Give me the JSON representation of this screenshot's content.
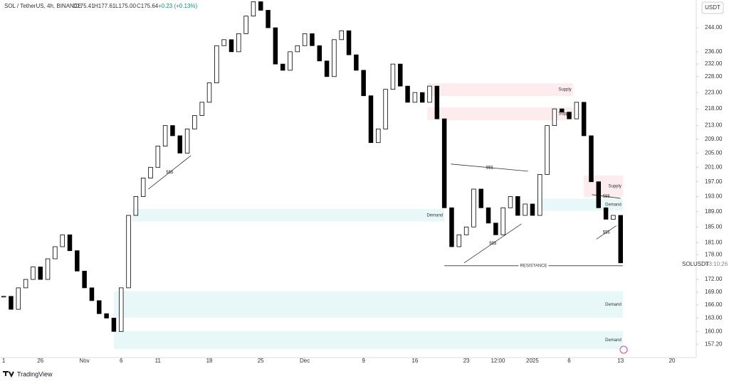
{
  "chart_data": {
    "type": "candle",
    "title": "SOL / TetherUS, 4h, BINANCE",
    "ohlc": [
      "O175.41",
      "H177.61",
      "L175.00",
      "C175.64",
      "+0.23 (+0.13%)"
    ],
    "currency_button": "USDT",
    "symbol_label": "SOLUSDT",
    "countdown": "03:10:26",
    "brand": "TradingView",
    "log_scale": true,
    "color": "#000000",
    "x": [
      0,
      1,
      2,
      3,
      4,
      5,
      6,
      7,
      8,
      9,
      10,
      11,
      12,
      13,
      14,
      15,
      16,
      17,
      18,
      19,
      20,
      21,
      22,
      23,
      24,
      25,
      26,
      27,
      28,
      29,
      30,
      31,
      32,
      33,
      34,
      35,
      36,
      37,
      38,
      39,
      40,
      41,
      42,
      43,
      44,
      45,
      46,
      47,
      48,
      49,
      50,
      51,
      52,
      53,
      54,
      55,
      56,
      57,
      58,
      59,
      60,
      61,
      62,
      63,
      64,
      65,
      66,
      67,
      68,
      69,
      70,
      71,
      72,
      73,
      74,
      75,
      76,
      77,
      78,
      79,
      80,
      81,
      82,
      83,
      84
    ],
    "values": [
      168,
      165,
      170,
      172,
      175,
      172,
      177,
      180,
      183,
      179,
      174,
      170,
      167,
      164,
      163,
      160,
      170,
      188,
      193,
      198,
      201,
      207,
      213,
      210,
      205,
      212,
      216,
      220,
      226,
      238,
      240,
      236,
      242,
      248,
      253,
      250,
      244,
      232,
      230,
      236,
      238,
      242,
      238,
      233,
      228,
      240,
      243,
      235,
      230,
      222,
      208,
      212,
      224,
      232,
      225,
      220,
      223,
      220,
      225,
      215,
      190,
      180,
      183,
      185,
      195,
      190,
      186,
      183,
      190,
      193,
      188,
      191,
      188,
      199,
      213,
      218,
      217,
      215,
      220,
      210,
      197,
      190,
      187,
      188,
      176
    ],
    "xlim": [
      -0.5,
      94.3
    ],
    "xticks": [
      {
        "value": 0,
        "label": "1"
      },
      {
        "value": 5,
        "label": "26"
      },
      {
        "value": 11,
        "label": "Nov"
      },
      {
        "value": 16,
        "label": "6"
      },
      {
        "value": 21,
        "label": "11"
      },
      {
        "value": 28,
        "label": "18"
      },
      {
        "value": 35,
        "label": "25"
      },
      {
        "value": 41,
        "label": "Dec"
      },
      {
        "value": 49,
        "label": "9"
      },
      {
        "value": 56,
        "label": "16"
      },
      {
        "value": 63,
        "label": "23"
      },
      {
        "value": 67.3,
        "label": "12:00"
      },
      {
        "value": 72,
        "label": "2025"
      },
      {
        "value": 77,
        "label": "6"
      },
      {
        "value": 84,
        "label": "13"
      },
      {
        "value": 91,
        "label": "20"
      }
    ],
    "ylim": [
      154.3,
      253.6
    ],
    "yticks": [
      {
        "value": 244,
        "label": "244.00"
      },
      {
        "value": 236,
        "label": "236.00"
      },
      {
        "value": 232,
        "label": "232.00"
      },
      {
        "value": 228,
        "label": "228.00"
      },
      {
        "value": 223,
        "label": "223.00"
      },
      {
        "value": 218,
        "label": "218.00"
      },
      {
        "value": 213,
        "label": "213.00"
      },
      {
        "value": 209,
        "label": "209.00"
      },
      {
        "value": 205,
        "label": "205.00"
      },
      {
        "value": 201,
        "label": "201.00"
      },
      {
        "value": 197,
        "label": "197.00"
      },
      {
        "value": 193,
        "label": "193.00"
      },
      {
        "value": 189,
        "label": "189.00"
      },
      {
        "value": 185,
        "label": "185.00"
      },
      {
        "value": 181,
        "label": "181.00"
      },
      {
        "value": 178,
        "label": "178.00"
      },
      {
        "value": 172,
        "label": "172.00"
      },
      {
        "value": 169,
        "label": "169.00"
      },
      {
        "value": 166,
        "label": "166.00"
      },
      {
        "value": 163,
        "label": "163.00"
      },
      {
        "value": 160,
        "label": "160.00"
      },
      {
        "value": 157.2,
        "label": "157.20"
      }
    ],
    "zones": [
      {
        "label": "Demand",
        "color": "#e8f7f7",
        "x": [
          17.5,
          60
        ],
        "y": [
          186.4,
          189.7
        ]
      },
      {
        "label": "Supply",
        "color": "#fdeced",
        "x": [
          57.7,
          77.5
        ],
        "y": [
          221.9,
          225.9
        ]
      },
      {
        "label": "Supply",
        "color": "#fdeced",
        "x": [
          57.7,
          77.5
        ],
        "y": [
          214.6,
          218.5
        ]
      },
      {
        "label": "Supply",
        "color": "#fdeced",
        "x": [
          79,
          84.3
        ],
        "y": [
          192.9,
          198.7
        ]
      },
      {
        "label": "Demand",
        "color": "#e8f7f7",
        "x": [
          72.5,
          84.3
        ],
        "y": [
          189.2,
          192.4
        ]
      },
      {
        "label": "Demand",
        "color": "#e8f7f7",
        "x": [
          15,
          84.3
        ],
        "y": [
          163.1,
          169.2
        ]
      },
      {
        "label": "Demand",
        "color": "#e8f7f7",
        "x": [
          15,
          84.3
        ],
        "y": [
          156.1,
          160.1
        ]
      }
    ],
    "lines": [
      {
        "label": "RESISTANCE",
        "x": [
          60,
          84.3
        ],
        "y": [
          175.3,
          175.3
        ]
      },
      {
        "label": "$$$",
        "x": [
          19.7,
          25.5
        ],
        "y": [
          195.0,
          204.3
        ]
      },
      {
        "label": "$$$",
        "x": [
          62.7,
          70.5
        ],
        "y": [
          176.0,
          185.8
        ]
      },
      {
        "label": "$$$",
        "x": [
          60.9,
          71.4
        ],
        "y": [
          201.9,
          199.9
        ]
      },
      {
        "label": "$$$",
        "x": [
          80.7,
          83.4
        ],
        "y": [
          181.9,
          185.3
        ]
      },
      {
        "label": "$$$",
        "x": [
          80.1,
          84.0
        ],
        "y": [
          193.5,
          192.5
        ]
      }
    ]
  }
}
